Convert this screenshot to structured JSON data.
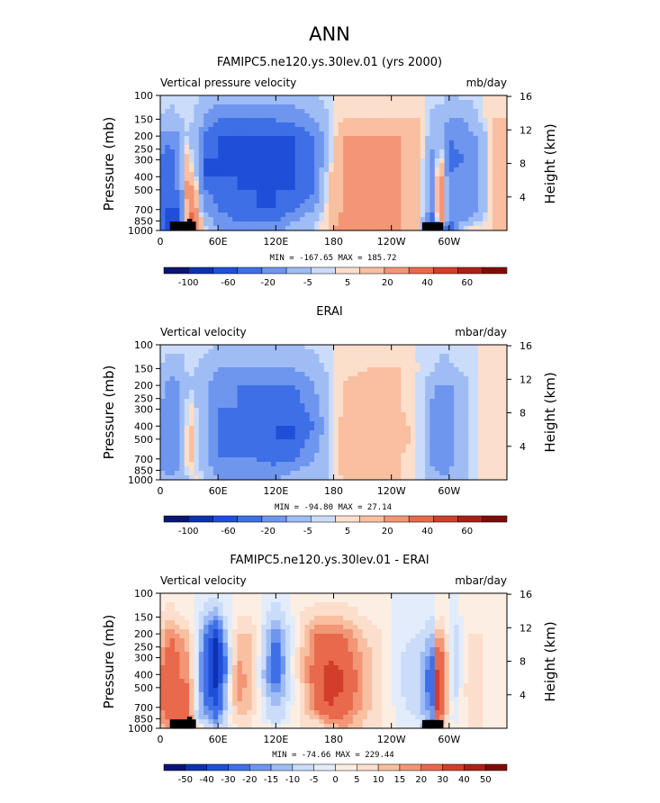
{
  "figure": {
    "title": "ANN"
  },
  "palette_model": [
    "#0a1670",
    "#0d31b0",
    "#1f4fd8",
    "#3f6fe6",
    "#6e96ee",
    "#9fbcf4",
    "#cadcf9",
    "#fbdecb",
    "#f8bfa0",
    "#f29676",
    "#e8694c",
    "#d23e2a",
    "#ad1f16",
    "#7e0c0b"
  ],
  "palette_diff": [
    "#0a1670",
    "#0d31b0",
    "#1f4fd8",
    "#3f6fe6",
    "#6e96ee",
    "#9fbcf4",
    "#cadcf9",
    "#e2ecfb",
    "#fdeee3",
    "#fbdecb",
    "#f8bfa0",
    "#f29676",
    "#e8694c",
    "#d23e2a",
    "#ad1f16",
    "#7e0c0b"
  ],
  "chart_data": [
    {
      "type": "heatmap",
      "id": "model",
      "title": "FAMIPC5.ne120.ys.30lev.01 (yrs 2000)",
      "left_label": "Vertical pressure velocity",
      "units_label": "mb/day",
      "ylabel": "Pressure (mb)",
      "ylabel_right": "Height (km)",
      "x_ticks": [
        "0",
        "60E",
        "120E",
        "180",
        "120W",
        "60W"
      ],
      "y_ticks": [
        "100",
        "150",
        "200",
        "250",
        "300",
        "400",
        "500",
        "700",
        "850",
        "1000"
      ],
      "y_ticks_right": [
        "16",
        "12",
        "8",
        "4"
      ],
      "stats": "MIN = -167.65   MAX = 185.72",
      "colorbar_labels": [
        "-100",
        "-60",
        "-20",
        "-5",
        "5",
        "20",
        "40",
        "60"
      ],
      "palette": "palette_model",
      "has_topography": true,
      "columns": [
        {
          "x": 0,
          "v": [
            -2,
            -5,
            -20,
            -40,
            -50,
            -60,
            -60,
            -40,
            -30
          ]
        },
        {
          "x": 10,
          "v": [
            -3,
            -8,
            -30,
            -60,
            -60,
            -40,
            -60,
            -100,
            -80
          ]
        },
        {
          "x": 20,
          "v": [
            -3,
            -5,
            -20,
            -20,
            -20,
            -40,
            -60,
            -60,
            -40
          ]
        },
        {
          "x": 28,
          "v": [
            -1,
            -3,
            -5,
            10,
            20,
            30,
            20,
            10,
            -60
          ]
        },
        {
          "x": 34,
          "v": [
            -2,
            -5,
            -10,
            -5,
            5,
            20,
            40,
            60,
            50
          ]
        },
        {
          "x": 40,
          "v": [
            -3,
            -10,
            -20,
            -20,
            -10,
            -5,
            5,
            20,
            30
          ]
        },
        {
          "x": 45,
          "v": [
            -5,
            -20,
            -40,
            -60,
            -60,
            -40,
            -20,
            -5,
            5
          ]
        },
        {
          "x": 60,
          "v": [
            -10,
            -40,
            -60,
            -60,
            -60,
            -50,
            -40,
            -30,
            -20
          ]
        },
        {
          "x": 80,
          "v": [
            -10,
            -40,
            -60,
            -60,
            -60,
            -60,
            -50,
            -40,
            -30
          ]
        },
        {
          "x": 100,
          "v": [
            -10,
            -40,
            -60,
            -60,
            -60,
            -60,
            -60,
            -40,
            -30
          ]
        },
        {
          "x": 120,
          "v": [
            -10,
            -40,
            -60,
            -70,
            -70,
            -60,
            -60,
            -40,
            -20
          ]
        },
        {
          "x": 140,
          "v": [
            -10,
            -30,
            -60,
            -60,
            -60,
            -60,
            -40,
            -20,
            -10
          ]
        },
        {
          "x": 160,
          "v": [
            -5,
            -20,
            -40,
            -40,
            -40,
            -40,
            -20,
            -5,
            -5
          ]
        },
        {
          "x": 175,
          "v": [
            -2,
            -5,
            -10,
            -5,
            5,
            5,
            5,
            5,
            5
          ]
        },
        {
          "x": 190,
          "v": [
            2,
            5,
            20,
            20,
            20,
            20,
            20,
            30,
            40
          ]
        },
        {
          "x": 220,
          "v": [
            2,
            5,
            20,
            20,
            20,
            20,
            20,
            30,
            30
          ]
        },
        {
          "x": 250,
          "v": [
            2,
            5,
            20,
            20,
            20,
            20,
            20,
            20,
            20
          ]
        },
        {
          "x": 270,
          "v": [
            1,
            5,
            10,
            5,
            5,
            5,
            5,
            5,
            5
          ]
        },
        {
          "x": 285,
          "v": [
            -3,
            -10,
            -20,
            -30,
            -30,
            -30,
            -40,
            -60,
            -100
          ]
        },
        {
          "x": 290,
          "v": [
            -3,
            -5,
            -10,
            20,
            40,
            60,
            60,
            50,
            -40
          ]
        },
        {
          "x": 300,
          "v": [
            -5,
            -20,
            -40,
            -50,
            -40,
            -30,
            -30,
            -40,
            -60
          ]
        },
        {
          "x": 315,
          "v": [
            -3,
            -20,
            -30,
            -40,
            -30,
            -30,
            -40,
            -20,
            5
          ]
        },
        {
          "x": 330,
          "v": [
            -2,
            -5,
            -20,
            -20,
            -20,
            -20,
            -20,
            -5,
            5
          ]
        },
        {
          "x": 345,
          "v": [
            2,
            5,
            5,
            5,
            5,
            5,
            5,
            5,
            5
          ]
        },
        {
          "x": 360,
          "v": [
            1,
            5,
            5,
            5,
            5,
            5,
            5,
            5,
            5
          ]
        }
      ]
    },
    {
      "type": "heatmap",
      "id": "erai",
      "title": "ERAI",
      "left_label": "Vertical velocity",
      "units_label": "mbar/day",
      "ylabel": "Pressure (mb)",
      "ylabel_right": "Height (km)",
      "x_ticks": [
        "0",
        "60E",
        "120E",
        "180",
        "120W",
        "60W"
      ],
      "y_ticks": [
        "100",
        "150",
        "200",
        "250",
        "300",
        "400",
        "500",
        "700",
        "850",
        "1000"
      ],
      "y_ticks_right": [
        "16",
        "12",
        "8",
        "4"
      ],
      "stats": "MIN = -94.80   MAX = 27.14",
      "colorbar_labels": [
        "-100",
        "-60",
        "-20",
        "-5",
        "5",
        "20",
        "40",
        "60"
      ],
      "palette": "palette_model",
      "has_topography": false,
      "columns": [
        {
          "x": 0,
          "v": [
            -2,
            -5,
            -10,
            -20,
            -20,
            -20,
            -20,
            -20,
            -10
          ]
        },
        {
          "x": 10,
          "v": [
            -3,
            -10,
            -30,
            -40,
            -40,
            -40,
            -40,
            -30,
            -20
          ]
        },
        {
          "x": 20,
          "v": [
            -3,
            -10,
            -20,
            -20,
            -30,
            -20,
            -20,
            -20,
            -10
          ]
        },
        {
          "x": 30,
          "v": [
            -1,
            -3,
            -5,
            5,
            10,
            10,
            10,
            5,
            -5
          ]
        },
        {
          "x": 38,
          "v": [
            -2,
            -5,
            -10,
            -5,
            -5,
            -5,
            -5,
            -5,
            5
          ]
        },
        {
          "x": 48,
          "v": [
            -3,
            -10,
            -20,
            -20,
            -20,
            -20,
            -20,
            -10,
            -5
          ]
        },
        {
          "x": 60,
          "v": [
            -5,
            -20,
            -30,
            -40,
            -40,
            -40,
            -40,
            -30,
            -20
          ]
        },
        {
          "x": 80,
          "v": [
            -5,
            -20,
            -40,
            -40,
            -45,
            -45,
            -40,
            -30,
            -20
          ]
        },
        {
          "x": 100,
          "v": [
            -5,
            -20,
            -40,
            -50,
            -55,
            -55,
            -40,
            -30,
            -20
          ]
        },
        {
          "x": 120,
          "v": [
            -5,
            -20,
            -40,
            -50,
            -60,
            -60,
            -50,
            -30,
            -20
          ]
        },
        {
          "x": 140,
          "v": [
            -5,
            -20,
            -40,
            -50,
            -60,
            -60,
            -40,
            -20,
            -10
          ]
        },
        {
          "x": 160,
          "v": [
            -3,
            -10,
            -20,
            -30,
            -40,
            -30,
            -20,
            -10,
            -5
          ]
        },
        {
          "x": 175,
          "v": [
            -1,
            -3,
            -5,
            -5,
            -5,
            -5,
            -5,
            -5,
            -5
          ]
        },
        {
          "x": 190,
          "v": [
            1,
            3,
            5,
            5,
            10,
            10,
            10,
            10,
            5
          ]
        },
        {
          "x": 220,
          "v": [
            2,
            5,
            10,
            10,
            10,
            10,
            10,
            10,
            5
          ]
        },
        {
          "x": 250,
          "v": [
            1,
            5,
            5,
            5,
            10,
            10,
            5,
            5,
            5
          ]
        },
        {
          "x": 275,
          "v": [
            -1,
            -2,
            -3,
            -5,
            -5,
            -5,
            -5,
            -5,
            -5
          ]
        },
        {
          "x": 285,
          "v": [
            -2,
            -5,
            -20,
            -30,
            -30,
            -30,
            -30,
            -20,
            -10
          ]
        },
        {
          "x": 295,
          "v": [
            -3,
            -10,
            -20,
            -30,
            -30,
            -40,
            -40,
            -30,
            -20
          ]
        },
        {
          "x": 305,
          "v": [
            -2,
            -5,
            -20,
            -20,
            -20,
            -20,
            -20,
            -10,
            -5
          ]
        },
        {
          "x": 320,
          "v": [
            -1,
            -3,
            -5,
            -5,
            -5,
            -5,
            -5,
            -5,
            -5
          ]
        },
        {
          "x": 340,
          "v": [
            1,
            2,
            3,
            3,
            3,
            3,
            3,
            3,
            5
          ]
        },
        {
          "x": 360,
          "v": [
            1,
            2,
            3,
            3,
            3,
            3,
            3,
            3,
            3
          ]
        }
      ]
    },
    {
      "type": "heatmap",
      "id": "diff",
      "title": "FAMIPC5.ne120.ys.30lev.01 - ERAI",
      "left_label": "Vertical velocity",
      "units_label": "mbar/day",
      "ylabel": "Pressure (mb)",
      "ylabel_right": "Height (km)",
      "x_ticks": [
        "0",
        "60E",
        "120E",
        "180",
        "120W",
        "60W"
      ],
      "y_ticks": [
        "100",
        "150",
        "200",
        "250",
        "300",
        "400",
        "500",
        "700",
        "850",
        "1000"
      ],
      "y_ticks_right": [
        "16",
        "12",
        "8",
        "4"
      ],
      "stats": "MIN = -74.66   MAX = 229.44",
      "colorbar_labels": [
        "-50",
        "-40",
        "-30",
        "-20",
        "-15",
        "-10",
        "-5",
        "0",
        "5",
        "10",
        "15",
        "20",
        "30",
        "40",
        "50"
      ],
      "palette": "palette_diff",
      "has_topography": true,
      "columns": [
        {
          "x": 0,
          "v": [
            1,
            5,
            10,
            15,
            20,
            20,
            20,
            15,
            10
          ]
        },
        {
          "x": 10,
          "v": [
            2,
            10,
            20,
            25,
            30,
            30,
            30,
            20,
            20
          ]
        },
        {
          "x": 20,
          "v": [
            1,
            5,
            15,
            20,
            20,
            25,
            30,
            30,
            40
          ]
        },
        {
          "x": 30,
          "v": [
            1,
            3,
            10,
            15,
            15,
            20,
            20,
            30,
            50
          ]
        },
        {
          "x": 38,
          "v": [
            -1,
            -3,
            -5,
            -5,
            -5,
            -5,
            -5,
            -10,
            10
          ]
        },
        {
          "x": 48,
          "v": [
            -2,
            -10,
            -20,
            -30,
            -30,
            -30,
            -20,
            -10,
            -5
          ]
        },
        {
          "x": 58,
          "v": [
            -3,
            -15,
            -40,
            -50,
            -50,
            -40,
            -30,
            -20,
            -10
          ]
        },
        {
          "x": 68,
          "v": [
            -1,
            -5,
            -10,
            -20,
            -20,
            -10,
            -10,
            -5,
            -5
          ]
        },
        {
          "x": 80,
          "v": [
            1,
            5,
            10,
            15,
            20,
            20,
            15,
            10,
            5
          ]
        },
        {
          "x": 95,
          "v": [
            1,
            5,
            10,
            10,
            10,
            10,
            10,
            5,
            5
          ]
        },
        {
          "x": 110,
          "v": [
            -1,
            -5,
            -10,
            -10,
            -15,
            -10,
            -5,
            -5,
            5
          ]
        },
        {
          "x": 120,
          "v": [
            -2,
            -10,
            -20,
            -30,
            -30,
            -20,
            -10,
            -10,
            -5
          ]
        },
        {
          "x": 130,
          "v": [
            -1,
            -5,
            -10,
            -10,
            -10,
            -10,
            -5,
            -5,
            5
          ]
        },
        {
          "x": 145,
          "v": [
            1,
            5,
            5,
            10,
            10,
            5,
            5,
            5,
            5
          ]
        },
        {
          "x": 160,
          "v": [
            1,
            10,
            20,
            20,
            25,
            20,
            20,
            10,
            5
          ]
        },
        {
          "x": 175,
          "v": [
            2,
            10,
            20,
            30,
            35,
            35,
            30,
            20,
            10
          ]
        },
        {
          "x": 190,
          "v": [
            2,
            10,
            20,
            25,
            30,
            30,
            25,
            20,
            15
          ]
        },
        {
          "x": 210,
          "v": [
            1,
            5,
            10,
            15,
            15,
            15,
            15,
            10,
            10
          ]
        },
        {
          "x": 230,
          "v": [
            1,
            3,
            5,
            5,
            5,
            5,
            5,
            5,
            5
          ]
        },
        {
          "x": 250,
          "v": [
            -1,
            -2,
            -3,
            -5,
            -5,
            -5,
            -3,
            -3,
            -3
          ]
        },
        {
          "x": 270,
          "v": [
            -1,
            -3,
            -5,
            -10,
            -10,
            -10,
            -10,
            -5,
            -5
          ]
        },
        {
          "x": 283,
          "v": [
            -2,
            -5,
            -10,
            -20,
            -30,
            -30,
            -20,
            -20,
            -40
          ]
        },
        {
          "x": 288,
          "v": [
            1,
            5,
            15,
            30,
            40,
            40,
            40,
            30,
            20
          ]
        },
        {
          "x": 295,
          "v": [
            1,
            5,
            10,
            20,
            20,
            20,
            20,
            10,
            5
          ]
        },
        {
          "x": 305,
          "v": [
            -1,
            -3,
            -10,
            -10,
            -10,
            -10,
            -5,
            -5,
            5
          ]
        },
        {
          "x": 320,
          "v": [
            1,
            3,
            5,
            5,
            5,
            10,
            5,
            5,
            5
          ]
        },
        {
          "x": 335,
          "v": [
            1,
            3,
            5,
            5,
            5,
            5,
            5,
            5,
            5
          ]
        },
        {
          "x": 350,
          "v": [
            1,
            2,
            3,
            3,
            3,
            3,
            3,
            3,
            3
          ]
        },
        {
          "x": 360,
          "v": [
            1,
            2,
            3,
            3,
            3,
            3,
            3,
            3,
            3
          ]
        }
      ]
    }
  ]
}
